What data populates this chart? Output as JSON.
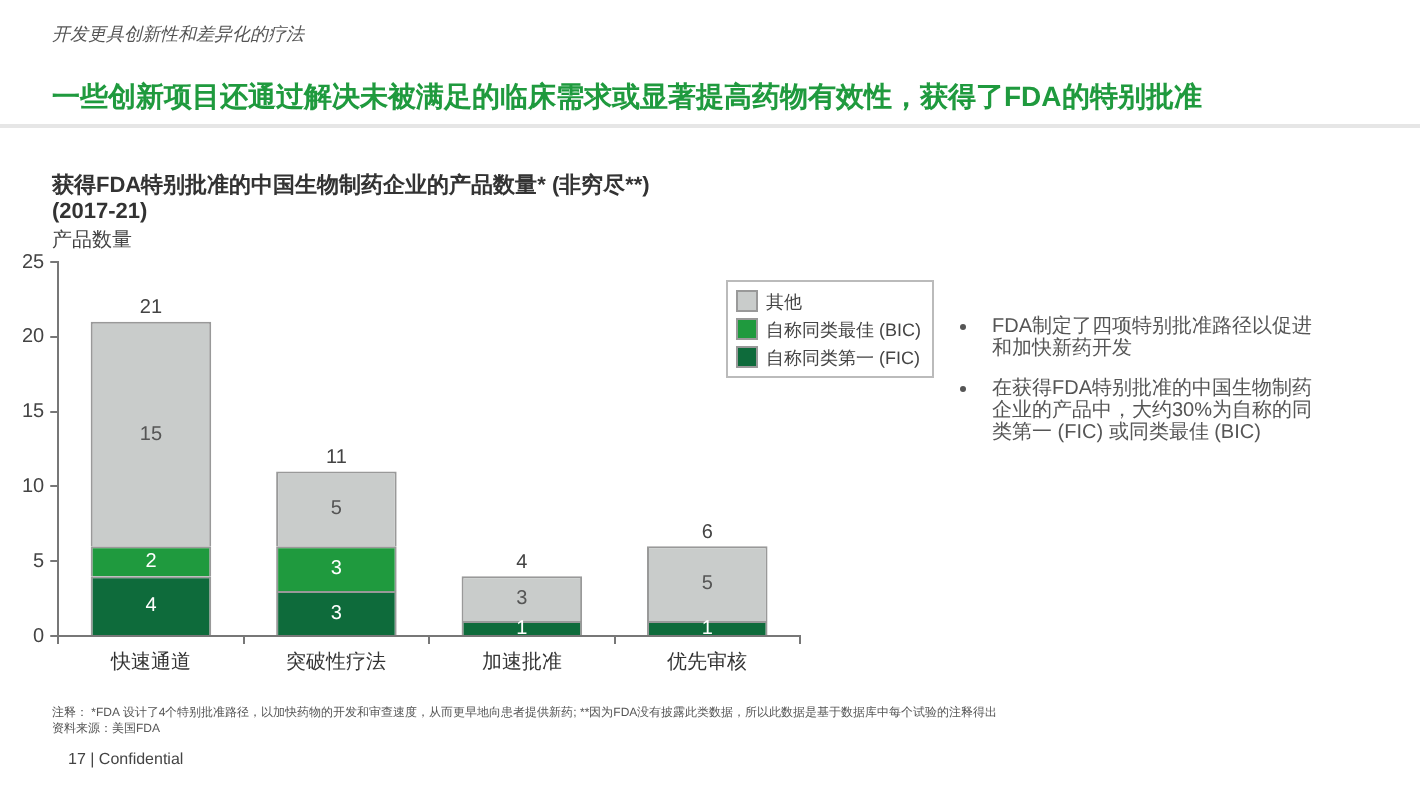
{
  "chart_data": {
    "type": "bar",
    "title": "获得FDA特别批准的中国生物制药企业的产品数量* (非穷尽**) (2017-21)",
    "ylabel": "产品数量",
    "categories": [
      "快速通道",
      "突破性疗法",
      "加速批准",
      "优先审核"
    ],
    "series": [
      {
        "name": "自称同类第一 (FIC)",
        "color": "#0e6b3b",
        "values": [
          4,
          3,
          1,
          1
        ]
      },
      {
        "name": "自称同类最佳 (BIC)",
        "color": "#1f9a3e",
        "values": [
          2,
          3,
          null,
          null
        ]
      },
      {
        "name": "其他",
        "color": "#c9cccb",
        "values": [
          15,
          5,
          3,
          5
        ]
      }
    ],
    "stacked": true,
    "data_labels": true,
    "totals": [
      "21",
      "11",
      "4",
      "6"
    ],
    "ylim": [
      0,
      25
    ],
    "yticks": [
      0,
      5,
      10,
      15,
      20,
      25
    ],
    "grid": false,
    "legend": "top right",
    "annotations": [
      "开发更具创新性和差异化的疗法",
      "一些创新项目还通过解决未被满足的临床需求或显著提高药物有效性，获得了FDA的特别批准",
      "FDA制定了四项特别批准路径以促进和加快新药开发",
      "在获得FDA特别批准的中国生物制药企业的产品中，大约30%为自称的同类第一 (FIC) 或同类最佳 (BIC)",
      "注释：     *FDA 设计了4个特别批准路径，以加快药物的开发和审查速度，从而更早地向患者提供新药; **因为FDA没有披露此类数据，所以此数据是基于数据库中每个试验的注释得出",
      "资料来源：美国FDA",
      "17 | Confidential"
    ]
  }
}
